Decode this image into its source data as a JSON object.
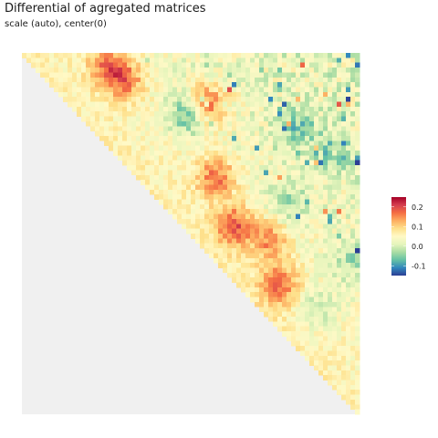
{
  "chart_data": {
    "type": "heatmap",
    "title": "Differential of agregated matrices",
    "subtitle": "scale (auto), center(0)",
    "layout": "upper-triangle",
    "grid": false,
    "cells_per_side": 74,
    "na_color": "#f0f0f0",
    "legend": {
      "position": "right",
      "range": [
        -0.15,
        0.25
      ],
      "ticks": [
        0.2,
        0.1,
        0.0,
        -0.1
      ],
      "tick_labels": [
        "0.2",
        "0.1",
        "0.0",
        "-0.1"
      ],
      "colors": [
        "#2c3e94",
        "#3288bd",
        "#66c2a5",
        "#abdda4",
        "#e6f5bc",
        "#fff9c6",
        "#fee08b",
        "#fdae61",
        "#f46d43",
        "#d53e4f",
        "#a50026"
      ]
    },
    "hotspots": [
      {
        "row": 10,
        "col": 40,
        "value": 0.14
      },
      {
        "row": 25,
        "col": 42,
        "value": 0.12
      },
      {
        "row": 35,
        "col": 46,
        "value": 0.14
      },
      {
        "row": 38,
        "col": 54,
        "value": 0.1
      },
      {
        "row": 47,
        "col": 56,
        "value": 0.12
      },
      {
        "row": 5,
        "col": 22,
        "value": 0.12
      },
      {
        "row": 2,
        "col": 18,
        "value": 0.1
      },
      {
        "row": 12,
        "col": 36,
        "value": -0.12
      },
      {
        "row": 15,
        "col": 60,
        "value": -0.08
      },
      {
        "row": 20,
        "col": 68,
        "value": -0.08
      },
      {
        "row": 42,
        "col": 72,
        "value": -0.06
      },
      {
        "row": 30,
        "col": 58,
        "value": -0.06
      },
      {
        "row": 52,
        "col": 64,
        "value": -0.05
      }
    ]
  }
}
